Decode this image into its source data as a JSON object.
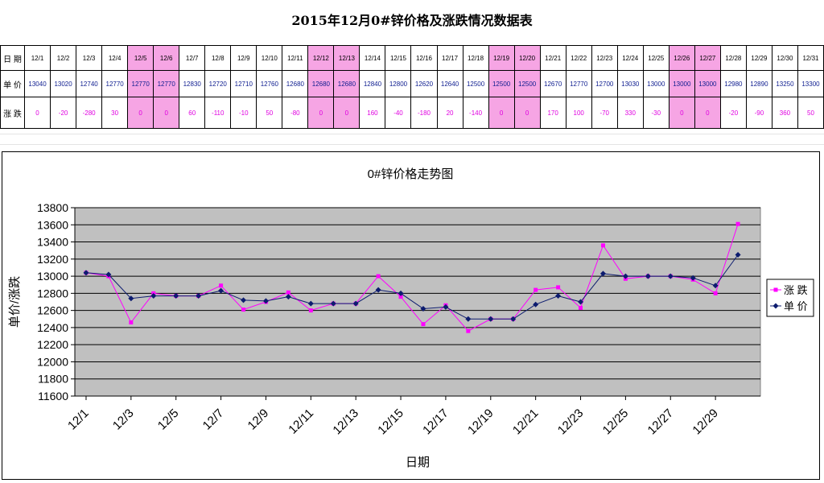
{
  "page": {
    "title": "2015年12月0#锌价格及涨跌情况数据表"
  },
  "table": {
    "row_labels": {
      "date": "日 期",
      "price": "单 价",
      "change": "涨 跌"
    },
    "dates": [
      "12/1",
      "12/2",
      "12/3",
      "12/4",
      "12/5",
      "12/6",
      "12/7",
      "12/8",
      "12/9",
      "12/10",
      "12/11",
      "12/12",
      "12/13",
      "12/14",
      "12/15",
      "12/16",
      "12/17",
      "12/18",
      "12/19",
      "12/20",
      "12/21",
      "12/22",
      "12/23",
      "12/24",
      "12/25",
      "12/26",
      "12/27",
      "12/28",
      "12/29",
      "12/30",
      "12/31"
    ],
    "prices": [
      "13040",
      "13020",
      "12740",
      "12770",
      "12770",
      "12770",
      "12830",
      "12720",
      "12710",
      "12760",
      "12680",
      "12680",
      "12680",
      "12840",
      "12800",
      "12620",
      "12640",
      "12500",
      "12500",
      "12500",
      "12670",
      "12770",
      "12700",
      "13030",
      "13000",
      "13000",
      "13000",
      "12980",
      "12890",
      "13250",
      "13300"
    ],
    "changes": [
      "0",
      "-20",
      "-280",
      "30",
      "0",
      "0",
      "60",
      "-110",
      "-10",
      "50",
      "-80",
      "0",
      "0",
      "160",
      "-40",
      "-180",
      "20",
      "-140",
      "0",
      "0",
      "170",
      "100",
      "-70",
      "330",
      "-30",
      "0",
      "0",
      "-20",
      "-90",
      "360",
      "50"
    ],
    "highlighted_dates": [
      "12/5",
      "12/6",
      "12/12",
      "12/13",
      "12/19",
      "12/20",
      "12/26",
      "12/27"
    ],
    "highlight_color": "#f6a5e4"
  },
  "chart_data": {
    "type": "line",
    "title": "0#锌价格走势图",
    "xlabel": "日期",
    "ylabel": "单价/涨跌",
    "ylim": [
      11600,
      13800
    ],
    "ytick_step": 200,
    "grid": true,
    "plot_background": "#c0c0c0",
    "legend_position": "right",
    "x_tick_labels": [
      "12/1",
      "12/3",
      "12/5",
      "12/7",
      "12/9",
      "12/11",
      "12/13",
      "12/15",
      "12/17",
      "12/19",
      "12/21",
      "12/23",
      "12/25",
      "12/27",
      "12/29"
    ],
    "x": [
      "12/1",
      "12/2",
      "12/3",
      "12/4",
      "12/5",
      "12/6",
      "12/7",
      "12/8",
      "12/9",
      "12/10",
      "12/11",
      "12/12",
      "12/13",
      "12/14",
      "12/15",
      "12/16",
      "12/17",
      "12/18",
      "12/19",
      "12/20",
      "12/21",
      "12/22",
      "12/23",
      "12/24",
      "12/25",
      "12/26",
      "12/27",
      "12/28",
      "12/29",
      "12/30"
    ],
    "series": [
      {
        "name": "涨 跌",
        "color": "#ff00ff",
        "marker": "square",
        "values": [
          13040,
          13000,
          12460,
          12800,
          12770,
          12770,
          12890,
          12610,
          12700,
          12810,
          12600,
          12680,
          12680,
          13000,
          12760,
          12440,
          12660,
          12360,
          12500,
          12500,
          12840,
          12870,
          12630,
          13360,
          12970,
          13000,
          13000,
          12960,
          12800,
          13610
        ]
      },
      {
        "name": "单 价",
        "color": "#0d1c6f",
        "marker": "diamond",
        "values": [
          13040,
          13020,
          12740,
          12770,
          12770,
          12770,
          12830,
          12720,
          12710,
          12760,
          12680,
          12680,
          12680,
          12840,
          12800,
          12620,
          12640,
          12500,
          12500,
          12500,
          12670,
          12770,
          12700,
          13030,
          13000,
          13000,
          13000,
          12980,
          12890,
          13250
        ]
      }
    ]
  }
}
